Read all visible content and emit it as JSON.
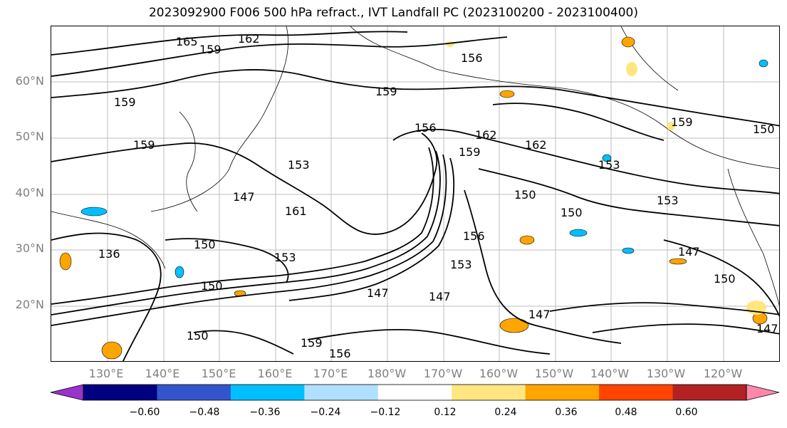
{
  "title": "2023092900 F006 500 hPa refract., IVT Landfall PC (2023100200 - 2023100400)",
  "map": {
    "lat_labels": [
      "60°N",
      "50°N",
      "40°N",
      "30°N",
      "20°N"
    ],
    "lon_labels": [
      "130°E",
      "140°E",
      "150°E",
      "160°E",
      "170°E",
      "180°W",
      "170°W",
      "160°W",
      "150°W",
      "140°W",
      "130°W",
      "120°W"
    ],
    "contour_labels": [
      "165",
      "162",
      "159",
      "159",
      "159",
      "159",
      "156",
      "162",
      "159",
      "162",
      "153",
      "153",
      "150",
      "150",
      "147",
      "161",
      "153",
      "156",
      "153",
      "147",
      "147",
      "147",
      "150",
      "147",
      "150",
      "159",
      "156",
      "153",
      "150",
      "136",
      "159",
      "156",
      "150",
      "150",
      "147"
    ]
  },
  "colorbar": {
    "colors": [
      "#9933cc",
      "#000080",
      "#3355cc",
      "#00bfff",
      "#b0e0ff",
      "#ffffff",
      "#ffe680",
      "#ffa500",
      "#ff4500",
      "#b22222",
      "#ff88aa"
    ],
    "ticks": [
      "−0.60",
      "−0.48",
      "−0.36",
      "−0.24",
      "−0.12",
      "0.12",
      "0.24",
      "0.36",
      "0.48",
      "0.60"
    ]
  }
}
